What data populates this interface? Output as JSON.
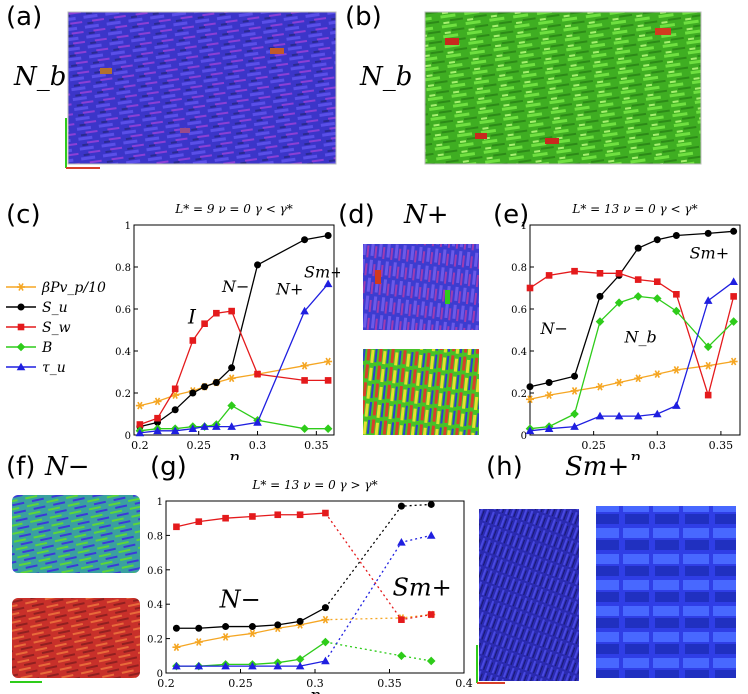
{
  "panels": {
    "a": {
      "label": "(a)",
      "phase": "N_b"
    },
    "b": {
      "label": "(b)",
      "phase": "N_b"
    },
    "c": {
      "label": "(c)"
    },
    "d": {
      "label": "(d)",
      "phase": "N+"
    },
    "e": {
      "label": "(e)"
    },
    "f": {
      "label": "(f)",
      "phase": "N−"
    },
    "g": {
      "label": "(g)"
    },
    "h": {
      "label": "(h)",
      "phase": "Sm+"
    }
  },
  "legend": {
    "entries": [
      {
        "label": "βPv_p/10",
        "color": "#f5a623",
        "marker": "star"
      },
      {
        "label": "S_u",
        "color": "#000000",
        "marker": "circle"
      },
      {
        "label": "S_w",
        "color": "#e41a1c",
        "marker": "square"
      },
      {
        "label": "B",
        "color": "#2ecc1a",
        "marker": "diamond"
      },
      {
        "label": "τ_u",
        "color": "#1f1fe0",
        "marker": "triangle"
      }
    ]
  },
  "colors": {
    "snapshot_blue": "#3a3ad8",
    "snapshot_green": "#4fd62a",
    "snapshot_red": "#d8402a"
  },
  "chart_data": [
    {
      "id": "c",
      "type": "line",
      "title": "L* = 9  ν = 0  γ < γ*",
      "xlabel": "η",
      "xlim": [
        0.195,
        0.365
      ],
      "ylim": [
        0,
        1
      ],
      "xticks": [
        "0.2",
        "0.25",
        "0.3",
        "0.35"
      ],
      "yticks": [
        "0",
        "0.2",
        "0.4",
        "0.6",
        "0.8",
        "1"
      ],
      "annotations": [
        "I",
        "N−",
        "N+",
        "Sm+"
      ],
      "x": [
        0.2,
        0.215,
        0.23,
        0.245,
        0.255,
        0.265,
        0.278,
        0.3,
        0.34,
        0.36
      ],
      "series": [
        {
          "name": "βPv_p/10",
          "values": [
            0.14,
            0.16,
            0.19,
            0.21,
            0.23,
            0.25,
            0.27,
            0.29,
            0.33,
            0.35
          ]
        },
        {
          "name": "S_u",
          "values": [
            0.04,
            0.06,
            0.12,
            0.2,
            0.23,
            0.25,
            0.32,
            0.81,
            0.93,
            0.95
          ]
        },
        {
          "name": "S_w",
          "values": [
            0.05,
            0.08,
            0.22,
            0.45,
            0.53,
            0.58,
            0.59,
            0.29,
            0.26,
            0.26
          ]
        },
        {
          "name": "B",
          "values": [
            0.02,
            0.03,
            0.03,
            0.04,
            0.04,
            0.05,
            0.14,
            0.07,
            0.03,
            0.03
          ]
        },
        {
          "name": "τ_u",
          "values": [
            0.01,
            0.02,
            0.02,
            0.03,
            0.04,
            0.04,
            0.04,
            0.06,
            0.59,
            0.72
          ]
        }
      ]
    },
    {
      "id": "e",
      "type": "line",
      "title": "L* = 13  ν = 0  γ < γ*",
      "xlabel": "η",
      "xlim": [
        0.2,
        0.365
      ],
      "ylim": [
        0,
        1
      ],
      "xticks": [
        "0.25",
        "0.3",
        "0.35"
      ],
      "yticks": [
        "0",
        "0.2",
        "0.4",
        "0.6",
        "0.8",
        "1"
      ],
      "annotations": [
        "N−",
        "N_b",
        "Sm+"
      ],
      "x": [
        0.2,
        0.215,
        0.235,
        0.255,
        0.27,
        0.285,
        0.3,
        0.315,
        0.34,
        0.36
      ],
      "series": [
        {
          "name": "βPv_p/10",
          "values": [
            0.17,
            0.19,
            0.21,
            0.23,
            0.25,
            0.27,
            0.29,
            0.31,
            0.33,
            0.35
          ]
        },
        {
          "name": "S_u",
          "values": [
            0.23,
            0.25,
            0.28,
            0.66,
            0.76,
            0.89,
            0.93,
            0.95,
            0.96,
            0.97
          ]
        },
        {
          "name": "S_w",
          "values": [
            0.7,
            0.76,
            0.78,
            0.77,
            0.77,
            0.74,
            0.73,
            0.67,
            0.19,
            0.66
          ]
        },
        {
          "name": "B",
          "values": [
            0.03,
            0.04,
            0.1,
            0.54,
            0.63,
            0.66,
            0.65,
            0.59,
            0.42,
            0.54
          ]
        },
        {
          "name": "τ_u",
          "values": [
            0.02,
            0.03,
            0.04,
            0.09,
            0.09,
            0.09,
            0.1,
            0.14,
            0.64,
            0.73
          ]
        }
      ]
    },
    {
      "id": "g",
      "type": "line",
      "title": "L* = 13  ν = 0  γ > γ*",
      "xlabel": "η",
      "xlim": [
        0.2,
        0.4
      ],
      "ylim": [
        0,
        1
      ],
      "xticks": [
        "0.2",
        "0.25",
        "0.3",
        "0.35",
        "0.4"
      ],
      "yticks": [
        "0",
        "0.2",
        "0.4",
        "0.6",
        "0.8",
        "1"
      ],
      "annotations": [
        "N−",
        "Sm+"
      ],
      "x": [
        0.207,
        0.222,
        0.24,
        0.258,
        0.275,
        0.29,
        0.307,
        0.358,
        0.378
      ],
      "dotted_segment_from_index": 6,
      "series": [
        {
          "name": "βPv_p/10",
          "values": [
            0.15,
            0.18,
            0.21,
            0.23,
            0.26,
            0.28,
            0.31,
            0.32,
            0.34
          ]
        },
        {
          "name": "S_u",
          "values": [
            0.26,
            0.26,
            0.27,
            0.27,
            0.28,
            0.3,
            0.38,
            0.97,
            0.98
          ]
        },
        {
          "name": "S_w",
          "values": [
            0.85,
            0.88,
            0.9,
            0.91,
            0.92,
            0.92,
            0.93,
            0.31,
            0.34
          ]
        },
        {
          "name": "B",
          "values": [
            0.04,
            0.04,
            0.05,
            0.05,
            0.06,
            0.08,
            0.18,
            0.1,
            0.07
          ]
        },
        {
          "name": "τ_u",
          "values": [
            0.04,
            0.04,
            0.04,
            0.04,
            0.04,
            0.04,
            0.07,
            0.76,
            0.8
          ]
        }
      ]
    }
  ]
}
